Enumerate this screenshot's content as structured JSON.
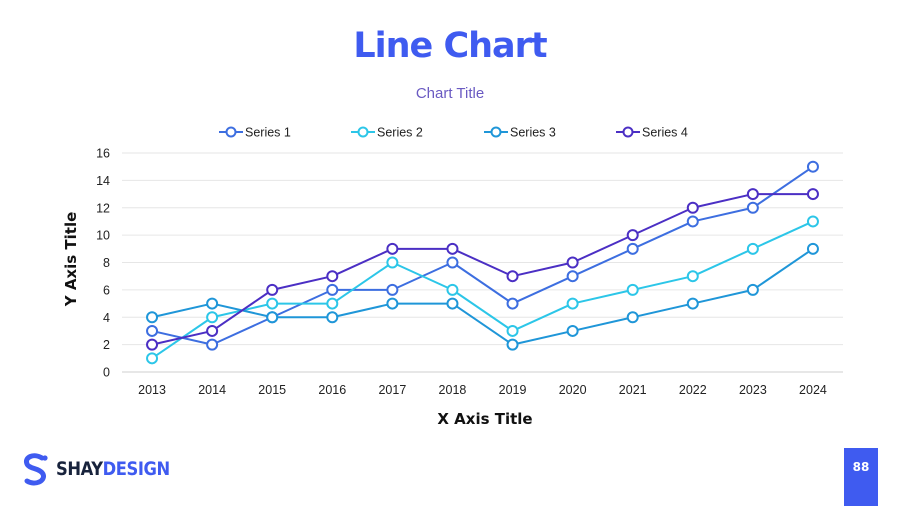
{
  "slide": {
    "title": "Line Chart",
    "page_number": "88",
    "logo": {
      "primary": "SHAY",
      "secondary": "DESIGN",
      "icon": "s-logo-icon",
      "color": "#3f5bf0"
    }
  },
  "chart_data": {
    "type": "line",
    "title": "Chart Title",
    "xlabel": "X Axis Title",
    "ylabel": "Y Axis Title",
    "categories": [
      "2013",
      "2014",
      "2015",
      "2016",
      "2017",
      "2018",
      "2019",
      "2020",
      "2021",
      "2022",
      "2023",
      "2024"
    ],
    "ylim": [
      0,
      16
    ],
    "yticks": [
      0,
      2,
      4,
      6,
      8,
      10,
      12,
      14,
      16
    ],
    "grid": true,
    "legend_position": "top",
    "markers": "open-circle",
    "series": [
      {
        "name": "Series 1",
        "color": "#3d6ee0",
        "values": [
          3,
          2,
          4,
          6,
          6,
          8,
          5,
          7,
          9,
          11,
          12,
          15
        ]
      },
      {
        "name": "Series 2",
        "color": "#2cc6e8",
        "values": [
          1,
          4,
          5,
          5,
          8,
          6,
          3,
          5,
          6,
          7,
          9,
          11
        ]
      },
      {
        "name": "Series 3",
        "color": "#1f96d8",
        "values": [
          4,
          5,
          4,
          4,
          5,
          5,
          2,
          3,
          4,
          5,
          6,
          9
        ]
      },
      {
        "name": "Series 4",
        "color": "#4b2fc4",
        "values": [
          2,
          3,
          6,
          7,
          9,
          9,
          7,
          8,
          10,
          12,
          13,
          13
        ]
      }
    ]
  }
}
